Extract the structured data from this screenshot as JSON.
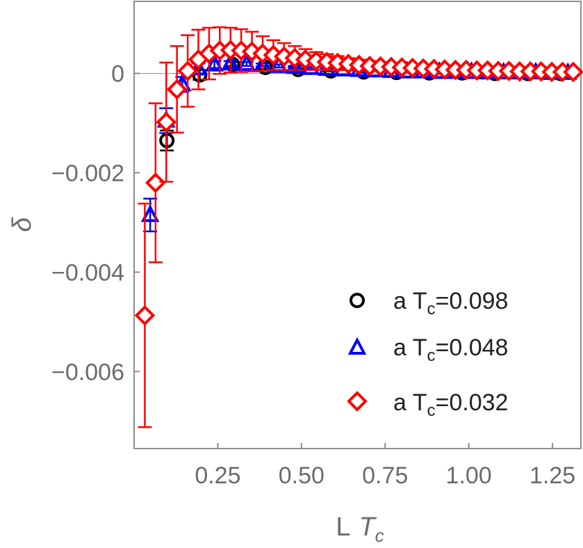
{
  "chart_data": {
    "type": "scatter",
    "title": "",
    "xlabel_main": "L",
    "xlabel_italic": "T",
    "xlabel_sub": "c",
    "ylabel": "δ",
    "xlim": [
      0.0,
      1.335
    ],
    "ylim": [
      -0.00755,
      0.00145
    ],
    "x_ticks": [
      0.25,
      0.5,
      0.75,
      1.0,
      1.25
    ],
    "x_tick_labels": [
      "0.25",
      "0.50",
      "0.75",
      "1.00",
      "1.25"
    ],
    "y_ticks": [
      0,
      -0.002,
      -0.004,
      -0.006
    ],
    "y_tick_labels": [
      "0",
      "−0.002",
      "−0.004",
      "−0.006"
    ],
    "grid": false,
    "legend_position": "bottom-right",
    "series": [
      {
        "name": "a T_c=0.098",
        "legend_label_main": "a T",
        "legend_label_sub": "c",
        "legend_label_rest": "=0.098",
        "color": "#000000",
        "marker": "circle",
        "x": [
          0.098,
          0.196,
          0.294,
          0.392,
          0.49,
          0.588,
          0.686,
          0.784,
          0.882,
          0.98,
          1.078,
          1.176,
          1.274
        ],
        "y": [
          -0.00135,
          -3e-05,
          0.00018,
          0.00012,
          8e-05,
          5e-05,
          3e-05,
          2e-05,
          1e-05,
          1e-05,
          0.0,
          0.0,
          0.0
        ],
        "err": [
          0.0002,
          0.0001,
          5e-05,
          3e-05,
          2e-05,
          1e-05,
          1e-05,
          0.0,
          0.0,
          0.0,
          0.0,
          0.0,
          0.0
        ]
      },
      {
        "name": "a T_c=0.048",
        "legend_label_main": "a T",
        "legend_label_sub": "c",
        "legend_label_rest": "=0.048",
        "color": "#0000ff",
        "marker": "triangle",
        "x": [
          0.048,
          0.096,
          0.144,
          0.192,
          0.24,
          0.288,
          0.336,
          0.384,
          0.432,
          0.48,
          0.528,
          0.576,
          0.624,
          0.672,
          0.72,
          0.768,
          0.816,
          0.864,
          0.912,
          0.96,
          1.008,
          1.056,
          1.104,
          1.152,
          1.2,
          1.248,
          1.296
        ],
        "y": [
          -0.00285,
          -0.00095,
          -0.00022,
          0.0001,
          0.00018,
          0.0002,
          0.00019,
          0.00017,
          0.00015,
          0.00013,
          0.00011,
          9e-05,
          8e-05,
          7e-05,
          6e-05,
          5e-05,
          4e-05,
          4e-05,
          3e-05,
          3e-05,
          3e-05,
          2e-05,
          2e-05,
          2e-05,
          2e-05,
          1e-05,
          1e-05
        ],
        "err": [
          0.00033,
          0.00025,
          0.00015,
          0.0001,
          7e-05,
          5e-05,
          4e-05,
          3e-05,
          3e-05,
          2e-05,
          2e-05,
          2e-05,
          1e-05,
          1e-05,
          1e-05,
          1e-05,
          1e-05,
          1e-05,
          0.0,
          0.0,
          0.0,
          0.0,
          0.0,
          0.0,
          0.0,
          0.0,
          0.0
        ]
      },
      {
        "name": "a T_c=0.032",
        "legend_label_main": "a T",
        "legend_label_sub": "c",
        "legend_label_rest": "=0.032",
        "color": "#ff0000",
        "marker": "diamond",
        "x": [
          0.032,
          0.064,
          0.096,
          0.128,
          0.16,
          0.192,
          0.224,
          0.256,
          0.288,
          0.32,
          0.352,
          0.384,
          0.416,
          0.448,
          0.48,
          0.512,
          0.544,
          0.576,
          0.608,
          0.64,
          0.672,
          0.704,
          0.736,
          0.768,
          0.8,
          0.832,
          0.864,
          0.896,
          0.928,
          0.96,
          0.992,
          1.024,
          1.056,
          1.088,
          1.12,
          1.152,
          1.184,
          1.216,
          1.248,
          1.28,
          1.312
        ],
        "y": [
          -0.00487,
          -0.0022,
          -0.00098,
          -0.00032,
          5e-05,
          0.00028,
          0.0004,
          0.00046,
          0.00047,
          0.00046,
          0.00044,
          0.0004,
          0.00037,
          0.00034,
          0.00031,
          0.00028,
          0.00025,
          0.00023,
          0.00021,
          0.00019,
          0.00017,
          0.00015,
          0.00014,
          0.00013,
          0.00012,
          0.00011,
          0.0001,
          9e-05,
          8e-05,
          7e-05,
          7e-05,
          6e-05,
          6e-05,
          5e-05,
          5e-05,
          4e-05,
          4e-05,
          4e-05,
          3e-05,
          3e-05,
          3e-05
        ],
        "err": [
          0.00225,
          0.0016,
          0.0012,
          0.00087,
          0.00072,
          0.0006,
          0.00052,
          0.00047,
          0.00045,
          0.00043,
          0.0004,
          0.00035,
          0.0003,
          0.00027,
          0.00024,
          0.00021,
          0.00018,
          0.00016,
          0.00014,
          0.00012,
          0.00011,
          0.0001,
          9e-05,
          8e-05,
          7e-05,
          6e-05,
          6e-05,
          5e-05,
          5e-05,
          4e-05,
          4e-05,
          4e-05,
          3e-05,
          3e-05,
          3e-05,
          3e-05,
          2e-05,
          2e-05,
          2e-05,
          2e-05,
          2e-05
        ]
      }
    ]
  }
}
